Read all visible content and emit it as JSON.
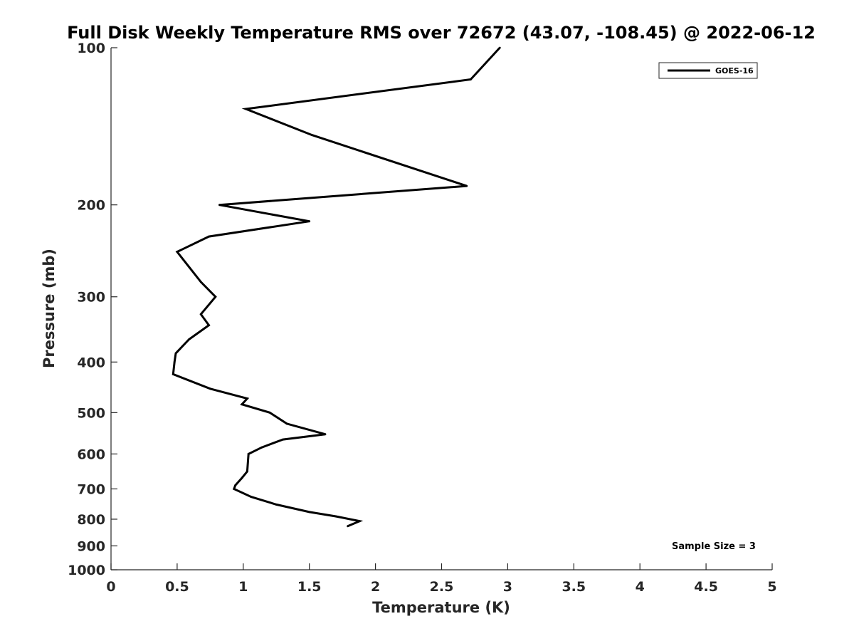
{
  "chart_data": {
    "type": "line",
    "title": "Full Disk Weekly Temperature RMS over 72672 (43.07, -108.45) @ 2022-06-12",
    "xlabel": "Temperature (K)",
    "ylabel": "Pressure (mb)",
    "xlim": [
      0,
      5
    ],
    "ylim": [
      100,
      1000
    ],
    "y_scale": "log",
    "y_reversed": true,
    "x_ticks": [
      "0",
      "0.5",
      "1",
      "1.5",
      "2",
      "2.5",
      "3",
      "3.5",
      "4",
      "4.5",
      "5"
    ],
    "y_ticks": [
      "100",
      "200",
      "300",
      "400",
      "500",
      "600",
      "700",
      "800",
      "900",
      "1000"
    ],
    "grid": false,
    "legend_position": "top-right",
    "series": [
      {
        "name": "GOES-16",
        "color": "#000000",
        "points": [
          {
            "t": 2.94,
            "p": 100
          },
          {
            "t": 2.72,
            "p": 115
          },
          {
            "t": 1.02,
            "p": 131
          },
          {
            "t": 1.52,
            "p": 147
          },
          {
            "t": 2.69,
            "p": 184
          },
          {
            "t": 0.82,
            "p": 200
          },
          {
            "t": 1.5,
            "p": 215
          },
          {
            "t": 0.74,
            "p": 230
          },
          {
            "t": 0.5,
            "p": 246
          },
          {
            "t": 0.68,
            "p": 281
          },
          {
            "t": 0.79,
            "p": 300
          },
          {
            "t": 0.68,
            "p": 324
          },
          {
            "t": 0.74,
            "p": 340
          },
          {
            "t": 0.59,
            "p": 362
          },
          {
            "t": 0.49,
            "p": 385
          },
          {
            "t": 0.48,
            "p": 400
          },
          {
            "t": 0.47,
            "p": 422
          },
          {
            "t": 0.75,
            "p": 450
          },
          {
            "t": 1.03,
            "p": 470
          },
          {
            "t": 0.99,
            "p": 482
          },
          {
            "t": 1.2,
            "p": 500
          },
          {
            "t": 1.33,
            "p": 525
          },
          {
            "t": 1.62,
            "p": 550
          },
          {
            "t": 1.3,
            "p": 563
          },
          {
            "t": 1.14,
            "p": 583
          },
          {
            "t": 1.04,
            "p": 600
          },
          {
            "t": 1.03,
            "p": 648
          },
          {
            "t": 0.99,
            "p": 667
          },
          {
            "t": 0.94,
            "p": 689
          },
          {
            "t": 0.93,
            "p": 700
          },
          {
            "t": 1.06,
            "p": 725
          },
          {
            "t": 1.25,
            "p": 750
          },
          {
            "t": 1.5,
            "p": 775
          },
          {
            "t": 1.7,
            "p": 790
          },
          {
            "t": 1.88,
            "p": 807
          },
          {
            "t": 1.79,
            "p": 825
          }
        ]
      }
    ],
    "annotation": "Sample Size = 3"
  }
}
